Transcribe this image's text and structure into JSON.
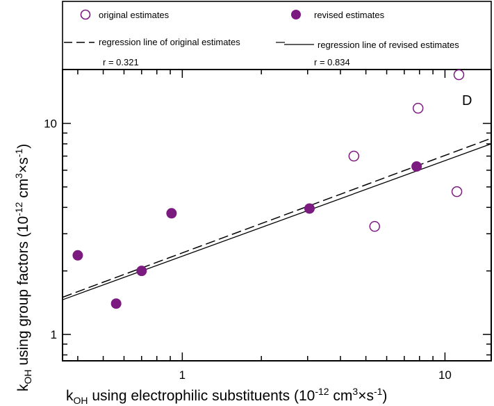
{
  "chart_data": {
    "type": "scatter",
    "panel_label": "D",
    "x_scale": "log",
    "y_scale": "log",
    "xlim": [
      0.35,
      15
    ],
    "ylim": [
      0.75,
      18
    ],
    "xlabel": {
      "base": "k",
      "sub": "OH",
      "text": " using electrophilic substituents (10",
      "sup1": "-12",
      "mid": " cm",
      "sup2": "3",
      "mid2": "×s",
      "sup3": "-1",
      "end": ")"
    },
    "ylabel": {
      "base": "k",
      "sub": "OH",
      "text": " using group factors (10",
      "sup1": "-12",
      "mid": " cm",
      "sup2": "3",
      "mid2": "×s",
      "sup3": "-1",
      "end": ")"
    },
    "x_ticks": [
      1,
      10
    ],
    "x_tick_labels": [
      "1",
      "10"
    ],
    "y_ticks": [
      1,
      10
    ],
    "y_tick_labels": [
      "1",
      "10"
    ],
    "grid": false,
    "colors": {
      "marker": "#7b1a7f",
      "line": "#000000"
    },
    "legend": {
      "placement": "top",
      "entries": [
        {
          "label": "original estimates",
          "symbol": "open-circle"
        },
        {
          "label": "revised estimates",
          "symbol": "filled-circle"
        },
        {
          "label": "regression line of original estimates",
          "symbol": "dashed-line"
        },
        {
          "label": "regression line of revised estimates",
          "symbol": "solid-line"
        }
      ],
      "r_original": "r = 0.321",
      "r_revised": "r = 0.834"
    },
    "series": [
      {
        "name": "original estimates",
        "marker": "open-circle",
        "x": [
          4.5,
          5.4,
          7.9,
          11.1,
          11.3
        ],
        "y": [
          7.0,
          3.25,
          11.8,
          4.75,
          17.0
        ]
      },
      {
        "name": "revised estimates",
        "marker": "filled-circle",
        "x": [
          0.4,
          0.56,
          0.7,
          0.91,
          3.05,
          7.8
        ],
        "y": [
          2.37,
          1.4,
          2.0,
          3.75,
          3.95,
          6.25
        ]
      }
    ],
    "regression_lines": [
      {
        "name": "regression line of original estimates",
        "style": "dashed",
        "x": [
          0.35,
          15
        ],
        "y": [
          1.5,
          8.5
        ]
      },
      {
        "name": "regression line of revised estimates",
        "style": "solid",
        "x": [
          0.35,
          15
        ],
        "y": [
          1.46,
          8.0
        ]
      }
    ]
  }
}
